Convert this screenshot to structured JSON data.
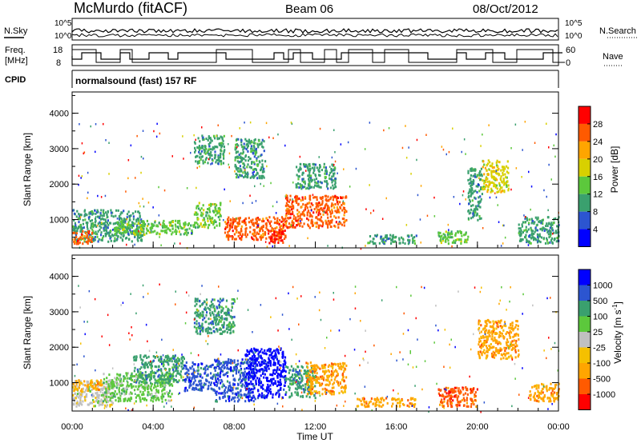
{
  "header": {
    "station": "McMurdo (fitACF)",
    "beam": "Beam 06",
    "date": "08/Oct/2012"
  },
  "aux_panels": {
    "nsky_label": "N.Sky",
    "nsearch_label": "N.Search",
    "noise_ticks_left": [
      "10^5",
      "10^0"
    ],
    "noise_ticks_right": [
      "10^5",
      "10^0"
    ],
    "freq_label_1": "Freq.",
    "freq_label_2": "[MHz]",
    "freq_ticks": [
      "18",
      "8"
    ],
    "nave_label": "Nave",
    "nave_ticks": [
      "60",
      "0"
    ],
    "cpid_label": "CPID",
    "cpid_text": "normalsound (fast) 157 RF"
  },
  "colors": {
    "power": [
      "#0000ff",
      "#2c55d0",
      "#3aa06e",
      "#5cc83c",
      "#d8d000",
      "#ffa500",
      "#ff5a00",
      "#ff0000"
    ],
    "velocity": [
      "#ff0000",
      "#ff5a00",
      "#ffa500",
      "#f5c000",
      "#c0c0c0",
      "#5cc83c",
      "#3aa06e",
      "#2c55d0",
      "#0000ff"
    ]
  },
  "chart_data": [
    {
      "type": "heatmap",
      "name": "power",
      "ylabel": "Slant Range [km]",
      "ylim": [
        200,
        4600
      ],
      "xlim": [
        0,
        24
      ],
      "y_ticks": [
        "1000",
        "2000",
        "3000",
        "4000"
      ],
      "colorbar_label": "Power [dB]",
      "colorbar_ticks": [
        "4",
        "8",
        "12",
        "16",
        "20",
        "24",
        "28"
      ],
      "colorbar_range": [
        0,
        32
      ],
      "regions": [
        {
          "t": [
            0.0,
            3.5
          ],
          "r": [
            400,
            1300
          ],
          "level": 10
        },
        {
          "t": [
            0.0,
            1.0
          ],
          "r": [
            350,
            700
          ],
          "level": 24
        },
        {
          "t": [
            2.0,
            6.0
          ],
          "r": [
            600,
            1000
          ],
          "level": 12
        },
        {
          "t": [
            6.0,
            7.3
          ],
          "r": [
            800,
            1500
          ],
          "level": 14
        },
        {
          "t": [
            6.0,
            7.5
          ],
          "r": [
            2600,
            3400
          ],
          "level": 10
        },
        {
          "t": [
            7.5,
            10.5
          ],
          "r": [
            450,
            1100
          ],
          "level": 27
        },
        {
          "t": [
            9.7,
            10.4
          ],
          "r": [
            350,
            750
          ],
          "level": 30
        },
        {
          "t": [
            8.0,
            9.5
          ],
          "r": [
            2200,
            3300
          ],
          "level": 9
        },
        {
          "t": [
            10.5,
            13.5
          ],
          "r": [
            800,
            1700
          ],
          "level": 25
        },
        {
          "t": [
            11.0,
            13.0
          ],
          "r": [
            1900,
            2600
          ],
          "level": 8
        },
        {
          "t": [
            14.5,
            17.0
          ],
          "r": [
            350,
            600
          ],
          "level": 10
        },
        {
          "t": [
            18.0,
            19.6
          ],
          "r": [
            350,
            700
          ],
          "level": 13
        },
        {
          "t": [
            19.5,
            20.2
          ],
          "r": [
            1000,
            2500
          ],
          "level": 8
        },
        {
          "t": [
            20.2,
            21.5
          ],
          "r": [
            1800,
            2700
          ],
          "level": 18
        },
        {
          "t": [
            22.0,
            24.0
          ],
          "r": [
            350,
            1100
          ],
          "level": 10
        }
      ]
    },
    {
      "type": "heatmap",
      "name": "velocity",
      "ylabel": "Slant Range [km]",
      "xlabel": "Time UT",
      "ylim": [
        200,
        4600
      ],
      "xlim": [
        0,
        24
      ],
      "y_ticks": [
        "1000",
        "2000",
        "3000",
        "4000"
      ],
      "x_ticks": [
        "00:00",
        "04:00",
        "08:00",
        "12:00",
        "16:00",
        "20:00",
        "00:00"
      ],
      "colorbar_label": "Velocity [m s",
      "colorbar_unit_sup": "-1",
      "colorbar_ticks": [
        "1000",
        "500",
        "100",
        "25",
        "-25",
        "-100",
        "-500",
        "-1000"
      ],
      "regions": [
        {
          "t": [
            0.0,
            2.0
          ],
          "r": [
            350,
            1100
          ],
          "level": 4
        },
        {
          "t": [
            0.0,
            1.5
          ],
          "r": [
            800,
            1100
          ],
          "level": 2
        },
        {
          "t": [
            1.5,
            5.0
          ],
          "r": [
            500,
            1300
          ],
          "level": 5
        },
        {
          "t": [
            3.0,
            5.5
          ],
          "r": [
            1000,
            1800
          ],
          "level": 6
        },
        {
          "t": [
            5.5,
            7.0
          ],
          "r": [
            800,
            1600
          ],
          "level": 7
        },
        {
          "t": [
            6.0,
            8.0
          ],
          "r": [
            2400,
            3400
          ],
          "level": 6
        },
        {
          "t": [
            7.0,
            9.0
          ],
          "r": [
            500,
            1700
          ],
          "level": 7
        },
        {
          "t": [
            8.5,
            10.5
          ],
          "r": [
            600,
            2000
          ],
          "level": 8
        },
        {
          "t": [
            10.5,
            12.0
          ],
          "r": [
            600,
            1500
          ],
          "level": 6
        },
        {
          "t": [
            11.5,
            13.5
          ],
          "r": [
            700,
            1600
          ],
          "level": 2
        },
        {
          "t": [
            14.0,
            17.0
          ],
          "r": [
            350,
            600
          ],
          "level": 2
        },
        {
          "t": [
            18.0,
            20.0
          ],
          "r": [
            350,
            900
          ],
          "level": 1
        },
        {
          "t": [
            20.0,
            22.0
          ],
          "r": [
            1700,
            2800
          ],
          "level": 2
        },
        {
          "t": [
            22.5,
            24.0
          ],
          "r": [
            500,
            1000
          ],
          "level": 2
        }
      ]
    }
  ]
}
